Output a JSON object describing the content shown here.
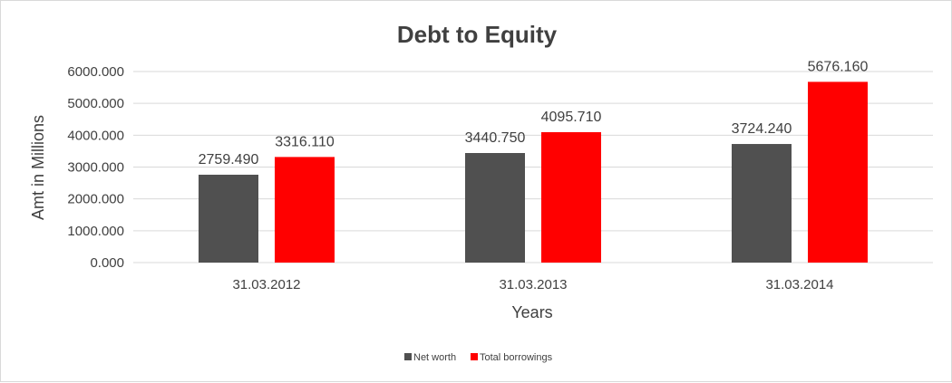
{
  "chart_data": {
    "type": "bar",
    "title": "Debt to Equity",
    "xlabel": "Years",
    "ylabel": "Amt in Millions",
    "categories": [
      "31.03.2012",
      "31.03.2013",
      "31.03.2014"
    ],
    "series": [
      {
        "name": "Net worth",
        "values": [
          2759.49,
          3440.75,
          3724.24
        ],
        "labels": [
          "2759.490",
          "3440.750",
          "3724.240"
        ],
        "color": "#505050"
      },
      {
        "name": "Total borrowings",
        "values": [
          3316.11,
          4095.71,
          5676.16
        ],
        "labels": [
          "3316.110",
          "4095.710",
          "5676.160"
        ],
        "color": "#ff0000"
      }
    ],
    "ylim": [
      0,
      6000
    ],
    "yticks": [
      0,
      1000,
      2000,
      3000,
      4000,
      5000,
      6000
    ],
    "ytick_labels": [
      "0.000",
      "1000.000",
      "2000.000",
      "3000.000",
      "4000.000",
      "5000.000",
      "6000.000"
    ],
    "grid": true,
    "legend_position": "bottom"
  }
}
